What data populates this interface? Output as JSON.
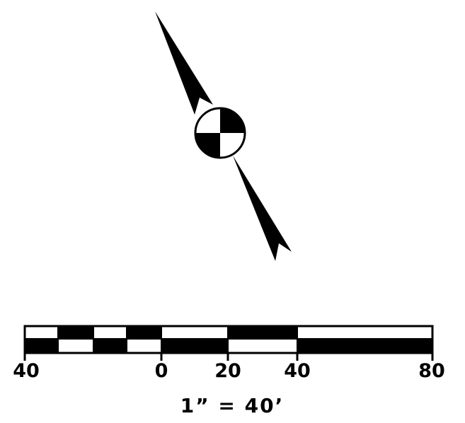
{
  "north_arrow": {
    "icon": "north-arrow-icon",
    "colors": {
      "ink": "#000000",
      "paper": "#ffffff"
    }
  },
  "scale_bar": {
    "tick_labels": [
      "40",
      "0",
      "20",
      "40",
      "80"
    ],
    "ratio_text": "1” = 40’"
  }
}
